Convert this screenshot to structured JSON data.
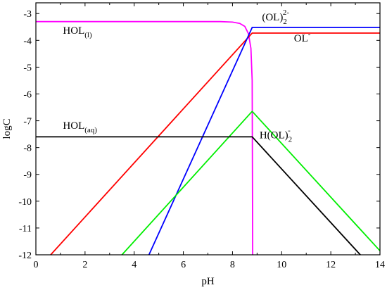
{
  "chart_data": {
    "type": "line",
    "xlabel": "pH",
    "ylabel": "logC",
    "xlim": [
      0,
      14
    ],
    "ylim": [
      -12,
      -2.6
    ],
    "xticks": [
      0,
      2,
      4,
      6,
      8,
      10,
      12,
      14
    ],
    "yticks": [
      -12,
      -11,
      -10,
      -9,
      -8,
      -7,
      -6,
      -5,
      -4,
      -3
    ],
    "xtick_labels": [
      "0",
      "2",
      "4",
      "6",
      "8",
      "10",
      "12",
      "14"
    ],
    "ytick_labels": [
      "-12",
      "-11",
      "-10",
      "-9",
      "-8",
      "-7",
      "-6",
      "-5",
      "-4",
      "-3"
    ],
    "grid": false,
    "series": [
      {
        "color": "#ff00ff",
        "points": [
          [
            0,
            -3.3
          ],
          [
            7.5,
            -3.3
          ],
          [
            8.0,
            -3.32
          ],
          [
            8.3,
            -3.37
          ],
          [
            8.5,
            -3.48
          ],
          [
            8.65,
            -3.75
          ],
          [
            8.75,
            -4.3
          ],
          [
            8.8,
            -5.5
          ],
          [
            8.82,
            -12.0
          ]
        ]
      },
      {
        "color": "#ff0000",
        "points": [
          [
            0.6,
            -12.0
          ],
          [
            8.8,
            -3.73
          ],
          [
            14,
            -3.73
          ]
        ]
      },
      {
        "color": "#0000ff",
        "points": [
          [
            4.6,
            -12.0
          ],
          [
            8.8,
            -3.52
          ],
          [
            14,
            -3.52
          ]
        ]
      },
      {
        "color": "#00ee00",
        "points": [
          [
            3.5,
            -12.0
          ],
          [
            8.8,
            -6.65
          ],
          [
            14,
            -11.85
          ]
        ]
      },
      {
        "color": "#000000",
        "points": [
          [
            0,
            -7.6
          ],
          [
            8.8,
            -7.6
          ],
          [
            13.2,
            -12.0
          ]
        ]
      }
    ],
    "annotations": [
      {
        "main": "HOL",
        "sub": "(l)",
        "sup": "",
        "x": 1.1,
        "y": -3.75
      },
      {
        "main": "(OL)",
        "sub": "2",
        "sup": "2-",
        "x": 9.2,
        "y": -3.25
      },
      {
        "main": "OL",
        "sub": "",
        "sup": "-",
        "x": 10.5,
        "y": -4.05
      },
      {
        "main": "HOL",
        "sub": "(aq)",
        "sup": "",
        "x": 1.1,
        "y": -7.3
      },
      {
        "main": "H(OL)",
        "sub": "2",
        "sup": "-",
        "x": 9.1,
        "y": -7.65
      }
    ]
  }
}
